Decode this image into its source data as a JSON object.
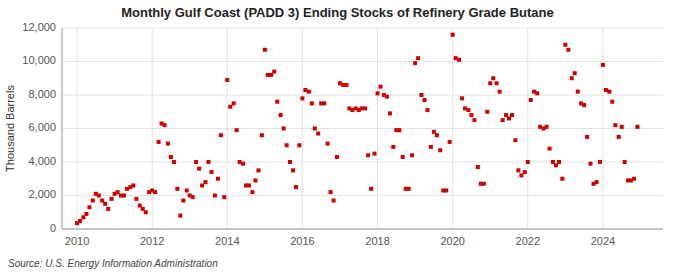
{
  "chart_data": {
    "type": "scatter",
    "title": "Monthly Gulf Coast (PADD 3) Ending Stocks of Refinery Grade Butane",
    "y_label": "Thousand Barrels",
    "annotations": [
      "Source: U.S. Energy Information Administration"
    ],
    "color": "#CC0000",
    "marker": "square",
    "grid": true,
    "xlim": [
      2009.6,
      2025.6
    ],
    "xticks": [
      2010,
      2012,
      2014,
      2016,
      2018,
      2020,
      2022,
      2024
    ],
    "ylim": [
      0,
      12000
    ],
    "yticks": [
      0,
      {
        "value": 2000,
        "label": "2,000"
      },
      {
        "value": 4000,
        "label": "4,000"
      },
      {
        "value": 6000,
        "label": "6,000"
      },
      {
        "value": 8000,
        "label": "8,000"
      },
      {
        "value": 10000,
        "label": "10,000"
      },
      {
        "value": 12000,
        "label": "12,000"
      }
    ],
    "x": [
      2010.0,
      2010.08,
      2010.17,
      2010.25,
      2010.33,
      2010.42,
      2010.5,
      2010.58,
      2010.67,
      2010.75,
      2010.83,
      2010.92,
      2011.0,
      2011.08,
      2011.17,
      2011.25,
      2011.33,
      2011.42,
      2011.5,
      2011.58,
      2011.67,
      2011.75,
      2011.83,
      2011.92,
      2012.0,
      2012.08,
      2012.17,
      2012.25,
      2012.33,
      2012.42,
      2012.5,
      2012.58,
      2012.67,
      2012.75,
      2012.83,
      2012.92,
      2013.0,
      2013.08,
      2013.17,
      2013.25,
      2013.33,
      2013.42,
      2013.5,
      2013.58,
      2013.67,
      2013.75,
      2013.83,
      2013.92,
      2014.0,
      2014.08,
      2014.17,
      2014.25,
      2014.33,
      2014.42,
      2014.5,
      2014.58,
      2014.67,
      2014.75,
      2014.83,
      2014.92,
      2015.0,
      2015.08,
      2015.17,
      2015.25,
      2015.33,
      2015.42,
      2015.5,
      2015.58,
      2015.67,
      2015.75,
      2015.83,
      2015.92,
      2016.0,
      2016.08,
      2016.17,
      2016.25,
      2016.33,
      2016.42,
      2016.5,
      2016.58,
      2016.67,
      2016.75,
      2016.83,
      2016.92,
      2017.0,
      2017.08,
      2017.17,
      2017.25,
      2017.33,
      2017.42,
      2017.5,
      2017.58,
      2017.67,
      2017.75,
      2017.83,
      2017.92,
      2018.0,
      2018.08,
      2018.17,
      2018.25,
      2018.33,
      2018.42,
      2018.5,
      2018.58,
      2018.67,
      2018.75,
      2018.83,
      2018.92,
      2019.0,
      2019.08,
      2019.17,
      2019.25,
      2019.33,
      2019.42,
      2019.5,
      2019.58,
      2019.67,
      2019.75,
      2019.83,
      2019.92,
      2020.0,
      2020.08,
      2020.17,
      2020.25,
      2020.33,
      2020.42,
      2020.5,
      2020.58,
      2020.67,
      2020.75,
      2020.83,
      2020.92,
      2021.0,
      2021.08,
      2021.17,
      2021.25,
      2021.33,
      2021.42,
      2021.5,
      2021.58,
      2021.67,
      2021.75,
      2021.83,
      2021.92,
      2022.0,
      2022.08,
      2022.17,
      2022.25,
      2022.33,
      2022.42,
      2022.5,
      2022.58,
      2022.67,
      2022.75,
      2022.83,
      2022.92,
      2023.0,
      2023.08,
      2023.17,
      2023.25,
      2023.33,
      2023.42,
      2023.5,
      2023.58,
      2023.67,
      2023.75,
      2023.83,
      2023.92,
      2024.0,
      2024.08,
      2024.17,
      2024.25,
      2024.33,
      2024.42,
      2024.5,
      2024.58,
      2024.67,
      2024.75,
      2024.83,
      2024.92
    ],
    "values": [
      350,
      480,
      700,
      900,
      1300,
      1700,
      2100,
      2000,
      1700,
      1500,
      1200,
      1800,
      2100,
      2200,
      2000,
      2000,
      2400,
      2500,
      2600,
      1800,
      1400,
      1200,
      1000,
      2200,
      2300,
      2200,
      5200,
      6300,
      6200,
      5100,
      4300,
      4000,
      2400,
      800,
      1700,
      2300,
      2000,
      1900,
      4000,
      3600,
      2600,
      2800,
      4000,
      3400,
      2000,
      3000,
      5600,
      1900,
      8900,
      7300,
      7500,
      5900,
      4000,
      3900,
      2600,
      2600,
      2200,
      2900,
      3500,
      5600,
      10700,
      9200,
      9200,
      9400,
      7600,
      6800,
      6000,
      5000,
      4000,
      3500,
      2500,
      5000,
      7800,
      8300,
      8200,
      7500,
      6000,
      5700,
      7500,
      7500,
      5100,
      2200,
      1700,
      4300,
      8700,
      8600,
      8600,
      7200,
      7100,
      7200,
      7100,
      7200,
      7200,
      4400,
      2400,
      4500,
      8100,
      8500,
      8000,
      7900,
      6900,
      4900,
      5900,
      5900,
      4300,
      2400,
      2400,
      4400,
      9900,
      10200,
      8000,
      7700,
      7100,
      4900,
      5800,
      5600,
      4700,
      2300,
      2300,
      5200,
      11600,
      10200,
      10100,
      7800,
      7200,
      7100,
      6800,
      6500,
      3700,
      2700,
      2700,
      7000,
      8700,
      9000,
      8700,
      8200,
      6500,
      6800,
      6600,
      6800,
      5300,
      3500,
      3200,
      3400,
      4000,
      7700,
      8200,
      8100,
      6100,
      6000,
      6100,
      4800,
      4000,
      3800,
      4000,
      3000,
      11000,
      10700,
      9000,
      9300,
      8200,
      7500,
      7400,
      5500,
      3900,
      2700,
      2800,
      4000,
      9800,
      8300,
      8200,
      7600,
      6200,
      5500,
      6100,
      4000,
      2900,
      2900,
      3000,
      6100
    ]
  }
}
